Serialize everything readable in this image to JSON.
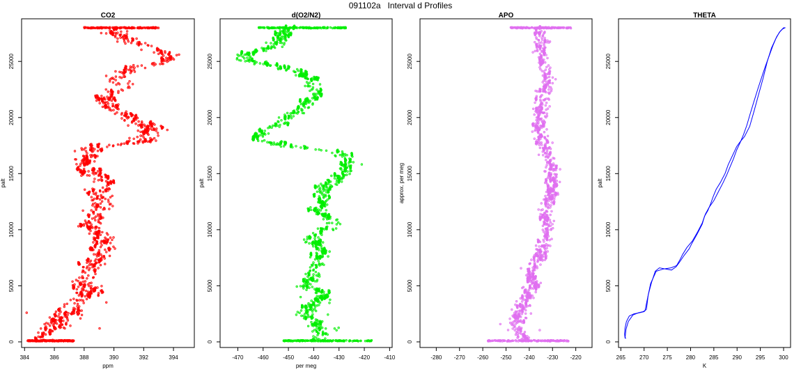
{
  "title": "091102a   Interval d Profiles",
  "chart_data": [
    {
      "type": "scatter",
      "title": "CO2",
      "xlabel": "ppm",
      "ylabel": "palt",
      "xlim": [
        383.8,
        395.4
      ],
      "ylim": [
        -500,
        28800
      ],
      "xticks": [
        384,
        386,
        388,
        390,
        392,
        394
      ],
      "yticks": [
        0,
        5000,
        10000,
        15000,
        20000,
        25000
      ],
      "color": "#ff0000",
      "marker": "open-circle",
      "profile": [
        [
          385.0,
          100
        ],
        [
          385.5,
          400
        ],
        [
          385.8,
          900
        ],
        [
          386.2,
          1500
        ],
        [
          386.8,
          2300
        ],
        [
          387.0,
          2800
        ],
        [
          387.3,
          3300
        ],
        [
          387.9,
          3800
        ],
        [
          388.3,
          4400
        ],
        [
          388.0,
          5000
        ],
        [
          388.1,
          5600
        ],
        [
          388.2,
          6200
        ],
        [
          388.6,
          6800
        ],
        [
          388.9,
          7400
        ],
        [
          389.2,
          8000
        ],
        [
          389.1,
          8600
        ],
        [
          389.5,
          9200
        ],
        [
          389.0,
          9700
        ],
        [
          388.5,
          10200
        ],
        [
          388.3,
          10600
        ],
        [
          388.8,
          11100
        ],
        [
          388.9,
          11600
        ],
        [
          389.1,
          12200
        ],
        [
          389.0,
          12800
        ],
        [
          388.8,
          13300
        ],
        [
          389.1,
          13800
        ],
        [
          389.0,
          14400
        ],
        [
          388.5,
          14900
        ],
        [
          388.4,
          15400
        ],
        [
          388.1,
          15800
        ],
        [
          388.0,
          16300
        ],
        [
          388.4,
          16900
        ],
        [
          388.2,
          17300
        ],
        [
          391.8,
          17800
        ],
        [
          392.2,
          18300
        ],
        [
          392.6,
          18900
        ],
        [
          392.0,
          19400
        ],
        [
          391.2,
          19800
        ],
        [
          390.5,
          20300
        ],
        [
          389.7,
          20800
        ],
        [
          389.3,
          21400
        ],
        [
          389.6,
          21900
        ],
        [
          390.2,
          22400
        ],
        [
          390.5,
          22900
        ],
        [
          390.3,
          23400
        ],
        [
          390.6,
          23900
        ],
        [
          391.1,
          24400
        ],
        [
          392.8,
          24800
        ],
        [
          393.8,
          25200
        ],
        [
          393.4,
          25700
        ],
        [
          392.3,
          26200
        ],
        [
          391.2,
          26700
        ],
        [
          390.4,
          27200
        ],
        [
          390.1,
          27600
        ],
        [
          390.5,
          28000
        ]
      ],
      "scatter_spread": 0.9,
      "ground_band": {
        "x": [
          384.2,
          387.3
        ],
        "y": 100
      },
      "top_band": {
        "x": [
          388.0,
          393.0
        ],
        "y": 28000
      }
    },
    {
      "type": "scatter",
      "title": "d(O2/N2)",
      "xlabel": "per meg",
      "ylabel": "palt",
      "xlim": [
        -477,
        -409
      ],
      "ylim": [
        -500,
        28800
      ],
      "xticks": [
        -470,
        -460,
        -450,
        -440,
        -430,
        -420,
        -410
      ],
      "yticks": [
        0,
        5000,
        10000,
        15000,
        20000,
        25000
      ],
      "color": "#00ee00",
      "marker": "open-circle",
      "profile": [
        [
          -439,
          200
        ],
        [
          -437,
          700
        ],
        [
          -438,
          1300
        ],
        [
          -440,
          2000
        ],
        [
          -443,
          2600
        ],
        [
          -441,
          3200
        ],
        [
          -437,
          3800
        ],
        [
          -436,
          4400
        ],
        [
          -444,
          5000
        ],
        [
          -440,
          5600
        ],
        [
          -441,
          6200
        ],
        [
          -440,
          6800
        ],
        [
          -438,
          7500
        ],
        [
          -437,
          8200
        ],
        [
          -439,
          8900
        ],
        [
          -443,
          9300
        ],
        [
          -436,
          9900
        ],
        [
          -431,
          10400
        ],
        [
          -434,
          10900
        ],
        [
          -437,
          11400
        ],
        [
          -438,
          12000
        ],
        [
          -436,
          12500
        ],
        [
          -437,
          13000
        ],
        [
          -436,
          13500
        ],
        [
          -435,
          14000
        ],
        [
          -430,
          14500
        ],
        [
          -428,
          15000
        ],
        [
          -426,
          15500
        ],
        [
          -426,
          16000
        ],
        [
          -428,
          16500
        ],
        [
          -431,
          17000
        ],
        [
          -449,
          17400
        ],
        [
          -463,
          18000
        ],
        [
          -461,
          18600
        ],
        [
          -456,
          19200
        ],
        [
          -452,
          19800
        ],
        [
          -449,
          20300
        ],
        [
          -444,
          20800
        ],
        [
          -442,
          21400
        ],
        [
          -439,
          21900
        ],
        [
          -441,
          22400
        ],
        [
          -440,
          22900
        ],
        [
          -442,
          23400
        ],
        [
          -445,
          23900
        ],
        [
          -452,
          24400
        ],
        [
          -462,
          24800
        ],
        [
          -468,
          25200
        ],
        [
          -466,
          25700
        ],
        [
          -457,
          26200
        ],
        [
          -454,
          26700
        ],
        [
          -453,
          27200
        ],
        [
          -452,
          27600
        ],
        [
          -450,
          28000
        ]
      ],
      "scatter_spread": 3.5,
      "ground_band": {
        "x": [
          -452,
          -417
        ],
        "y": 100
      },
      "top_band": {
        "x": [
          -462,
          -427
        ],
        "y": 28000
      }
    },
    {
      "type": "scatter",
      "title": "APO",
      "xlabel": "",
      "ylabel": "approx. per meg",
      "xlim": [
        -287,
        -213
      ],
      "ylim": [
        -500,
        28800
      ],
      "xticks": [
        -280,
        -270,
        -260,
        -250,
        -240,
        -230,
        -220
      ],
      "yticks": [
        0,
        5000,
        10000,
        15000,
        20000,
        25000
      ],
      "color": "#e070f0",
      "marker": "open-circle",
      "profile": [
        [
          -242,
          200
        ],
        [
          -245,
          900
        ],
        [
          -246,
          1600
        ],
        [
          -245,
          2300
        ],
        [
          -243,
          3000
        ],
        [
          -241,
          3700
        ],
        [
          -240,
          4400
        ],
        [
          -238,
          5100
        ],
        [
          -240,
          5800
        ],
        [
          -239,
          6500
        ],
        [
          -237,
          7200
        ],
        [
          -235,
          7900
        ],
        [
          -234,
          8600
        ],
        [
          -233,
          9300
        ],
        [
          -233,
          10000
        ],
        [
          -232,
          10700
        ],
        [
          -233,
          11400
        ],
        [
          -232,
          12100
        ],
        [
          -231,
          12800
        ],
        [
          -230,
          13500
        ],
        [
          -231,
          14200
        ],
        [
          -230,
          14900
        ],
        [
          -230,
          15600
        ],
        [
          -232,
          16300
        ],
        [
          -233,
          17000
        ],
        [
          -234,
          17700
        ],
        [
          -235,
          18400
        ],
        [
          -236,
          19100
        ],
        [
          -235,
          19800
        ],
        [
          -235,
          20500
        ],
        [
          -235,
          21200
        ],
        [
          -234,
          21900
        ],
        [
          -233,
          22600
        ],
        [
          -232,
          23300
        ],
        [
          -233,
          24000
        ],
        [
          -234,
          24700
        ],
        [
          -235,
          25400
        ],
        [
          -235,
          26100
        ],
        [
          -235,
          26800
        ],
        [
          -235,
          27500
        ],
        [
          -235,
          28000
        ]
      ],
      "scatter_spread": 3.0,
      "ground_band": {
        "x": [
          -258,
          -223
        ],
        "y": 100
      },
      "top_band": {
        "x": [
          -248,
          -222
        ],
        "y": 28000
      }
    },
    {
      "type": "line",
      "title": "THETA",
      "xlabel": "K",
      "ylabel": "palt",
      "xlim": [
        264.5,
        301.5
      ],
      "ylim": [
        -500,
        28800
      ],
      "xticks": [
        265,
        270,
        275,
        280,
        285,
        290,
        295,
        300
      ],
      "yticks": [
        0,
        5000,
        10000,
        15000,
        20000,
        25000
      ],
      "color": "#0000ff",
      "series": [
        {
          "x": [
            266.1,
            265.9,
            265.8,
            265.9,
            266.2,
            266.8,
            267.8,
            269.0,
            270.0,
            270.5,
            270.9,
            271.6,
            272.4,
            273.3,
            274.6,
            275.9,
            276.9,
            277.6,
            278.6,
            279.7,
            280.3,
            281.4,
            282.5,
            283.0,
            283.7,
            284.3,
            284.9,
            285.5,
            286.4,
            287.4,
            288.1,
            289.0,
            289.9,
            290.6,
            291.6,
            292.7,
            293.6,
            294.6,
            295.6,
            296.5,
            297.4,
            298.3,
            299.1,
            299.8,
            300.3
          ],
          "y": [
            300,
            400,
            700,
            1200,
            1800,
            2300,
            2500,
            2600,
            2700,
            2900,
            4200,
            5300,
            6300,
            6600,
            6500,
            6400,
            6700,
            7100,
            7700,
            8300,
            8800,
            9600,
            10500,
            11200,
            11700,
            12300,
            13000,
            13600,
            14200,
            15000,
            15800,
            16600,
            17400,
            17800,
            18300,
            19200,
            20500,
            22000,
            23500,
            25000,
            26200,
            27000,
            27600,
            27900,
            28000
          ]
        },
        {
          "x": [
            265.9,
            266.0,
            266.1,
            266.6,
            267.6,
            268.8,
            269.8,
            270.2,
            270.6,
            271.4,
            272.6,
            274.2,
            275.8,
            277.0,
            277.7,
            278.3,
            279.2,
            280.4,
            281.5,
            282.5,
            283.2,
            284.0,
            285.0,
            286.0,
            287.0,
            287.8,
            288.5,
            289.2,
            289.9,
            290.7,
            291.4,
            292.1,
            292.8,
            293.6,
            294.5,
            295.3,
            296.1,
            296.9,
            297.7,
            298.5,
            299.3,
            300.0,
            300.4
          ],
          "y": [
            300,
            700,
            1100,
            1800,
            2400,
            2600,
            2700,
            2800,
            3600,
            5200,
            6300,
            6500,
            6600,
            6800,
            7300,
            7800,
            8400,
            9000,
            9800,
            10600,
            11400,
            12000,
            12600,
            13400,
            14200,
            14900,
            15600,
            16300,
            17100,
            17800,
            18500,
            19300,
            20300,
            21400,
            22600,
            23600,
            24600,
            25500,
            26400,
            27200,
            27700,
            28000,
            28000
          ]
        }
      ]
    }
  ]
}
